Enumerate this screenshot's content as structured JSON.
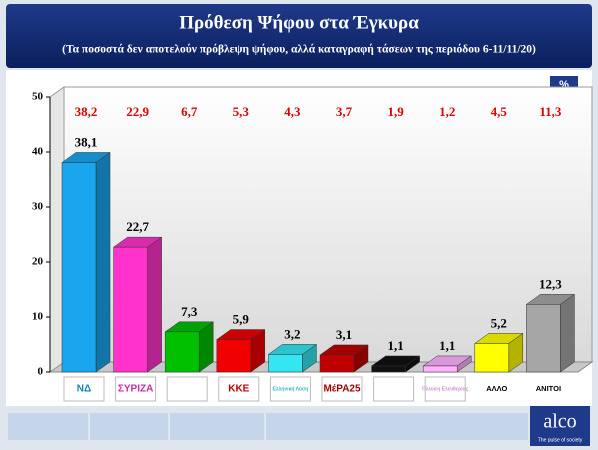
{
  "chart_data": {
    "type": "bar3d",
    "title": "Πρόθεση Ψήφου στα Έγκυρα",
    "subtitle": "(Τα ποσοστά δεν αποτελούν πρόβλεψη ψήφου, αλλά καταγραφή τάσεων της περιόδου 6-11/11/20)",
    "unit_badge": "%",
    "categories": [
      "ΝΔ",
      "ΣΥΡΙΖΑ",
      null,
      "ΚΚΕ",
      "Ελληνική Λύση",
      "ΜέΡΑ25",
      null,
      "Πλεύση Ελευθερίας",
      "ΑΛΛΟ",
      "ΑΝΙΤΟΙ"
    ],
    "values": [
      38.1,
      22.7,
      7.3,
      5.9,
      3.2,
      3.1,
      1.1,
      1.1,
      5.2,
      12.3
    ],
    "value_labels": [
      "38,1",
      "22,7",
      "7,3",
      "5,9",
      "3,2",
      "3,1",
      "1,1",
      "1,1",
      "5,2",
      "12,3"
    ],
    "comparison_values": [
      38.2,
      22.9,
      6.7,
      5.3,
      4.3,
      3.7,
      1.9,
      1.2,
      4.5,
      11.3
    ],
    "comparison_value_labels": [
      "38,2",
      "22,9",
      "6,7",
      "5,3",
      "4,3",
      "3,7",
      "1,9",
      "1,2",
      "4,5",
      "11,3"
    ],
    "colors": [
      "#19a6ee",
      "#ff33cc",
      "#00c000",
      "#f00000",
      "#33e6f2",
      "#c00000",
      "#111111",
      "#ffb3ff",
      "#ffff00",
      "#a6a6a6"
    ],
    "ylim": [
      0,
      50
    ],
    "yticks": [
      0,
      10,
      20,
      30,
      40,
      50
    ],
    "brand": "alco",
    "brand_tagline": "The pulse of society"
  }
}
